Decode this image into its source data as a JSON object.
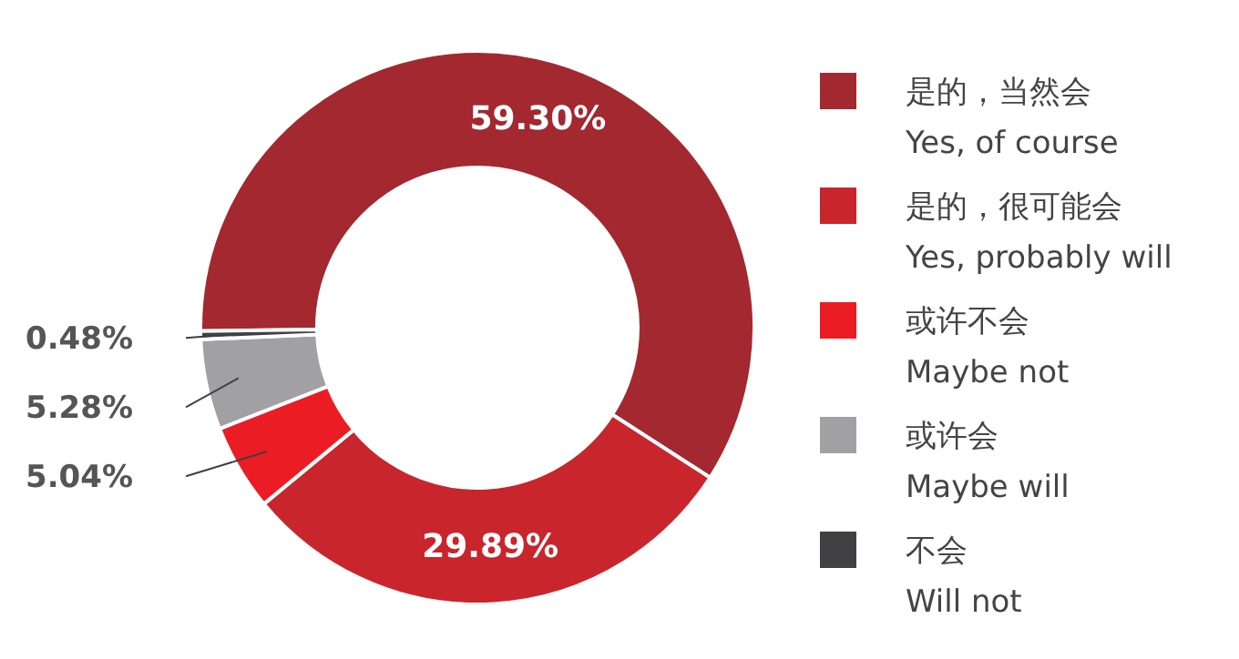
{
  "chart_data": {
    "type": "donut",
    "categories": [
      "是的，当然会\nYes, of course",
      "是的，很可能会\nYes, probably will",
      "或许不会\nMaybe not",
      "或许会\nMaybe will",
      "不会\nWill not"
    ],
    "values": [
      59.3,
      29.89,
      5.04,
      5.28,
      0.48
    ],
    "value_labels": [
      "59.30%",
      "29.89%",
      "5.04%",
      "5.28%",
      "0.48%"
    ],
    "colors": [
      "#a3282f",
      "#c9252c",
      "#ec1c24",
      "#a1a1a3",
      "#414042"
    ],
    "legend": "right"
  }
}
